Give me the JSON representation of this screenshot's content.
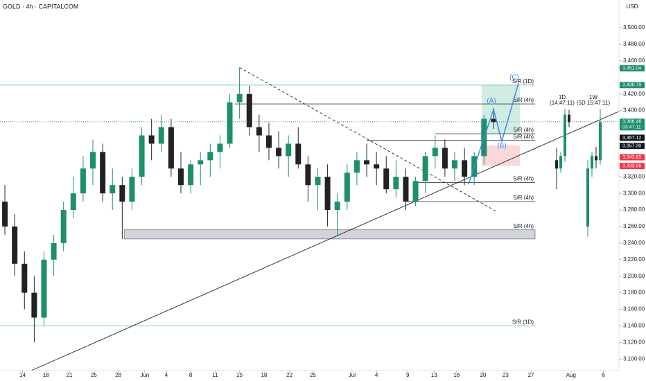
{
  "chart_data": {
    "type": "candlestick",
    "title": "GOLD · 4h · CAPITALCOM",
    "currency": "USD",
    "up_color": "#1e8f6e",
    "down_color": "#222222",
    "xlim": [
      0,
      63.3
    ],
    "ylim": [
      3086,
      3533.5
    ],
    "xticks": [
      {
        "value": 2.3,
        "label": "14"
      },
      {
        "value": 4.7,
        "label": "18"
      },
      {
        "value": 7.1,
        "label": "21"
      },
      {
        "value": 9.6,
        "label": "25"
      },
      {
        "value": 12.1,
        "label": "28"
      },
      {
        "value": 14.8,
        "label": "Jun"
      },
      {
        "value": 17.0,
        "label": "4"
      },
      {
        "value": 19.5,
        "label": "8"
      },
      {
        "value": 22.0,
        "label": "11"
      },
      {
        "value": 24.5,
        "label": "15"
      },
      {
        "value": 27.0,
        "label": "18"
      },
      {
        "value": 29.6,
        "label": "22"
      },
      {
        "value": 32.0,
        "label": "25"
      },
      {
        "value": 36.0,
        "label": "Jul"
      },
      {
        "value": 38.5,
        "label": "4"
      },
      {
        "value": 41.7,
        "label": "9"
      },
      {
        "value": 44.4,
        "label": "13"
      },
      {
        "value": 46.7,
        "label": "16"
      },
      {
        "value": 49.4,
        "label": "20"
      },
      {
        "value": 51.7,
        "label": "23"
      },
      {
        "value": 54.3,
        "label": "27"
      },
      {
        "value": 58.4,
        "label": "Aug"
      },
      {
        "value": 61.7,
        "label": "6"
      }
    ],
    "yticks": [
      {
        "value": 3100,
        "label": "3,100.00"
      },
      {
        "value": 3120,
        "label": "3,120.00"
      },
      {
        "value": 3140,
        "label": "3,140.00"
      },
      {
        "value": 3160,
        "label": "3,160.00"
      },
      {
        "value": 3180,
        "label": "3,180.00"
      },
      {
        "value": 3200,
        "label": "3,200.00"
      },
      {
        "value": 3220,
        "label": "3,220.00"
      },
      {
        "value": 3240,
        "label": "3,240.00"
      },
      {
        "value": 3260,
        "label": "3,260.00"
      },
      {
        "value": 3280,
        "label": "3,280.00"
      },
      {
        "value": 3300,
        "label": "3,300.00"
      },
      {
        "value": 3320,
        "label": "3,320.00"
      },
      {
        "value": 3400,
        "label": "3,400.00"
      },
      {
        "value": 3420,
        "label": "3,420.00"
      },
      {
        "value": 3460,
        "label": "3,460.00"
      },
      {
        "value": 3480,
        "label": "3,480.00"
      },
      {
        "value": 3500,
        "label": "3,500.00"
      }
    ],
    "candles": [
      {
        "open": 3290,
        "high": 3310,
        "low": 3250,
        "close": 3260
      },
      {
        "open": 3260,
        "high": 3275,
        "low": 3200,
        "close": 3215
      },
      {
        "open": 3215,
        "high": 3230,
        "low": 3160,
        "close": 3180
      },
      {
        "open": 3180,
        "high": 3200,
        "low": 3120,
        "close": 3150
      },
      {
        "open": 3150,
        "high": 3230,
        "low": 3140,
        "close": 3220
      },
      {
        "open": 3220,
        "high": 3250,
        "low": 3200,
        "close": 3240
      },
      {
        "open": 3240,
        "high": 3290,
        "low": 3230,
        "close": 3280
      },
      {
        "open": 3280,
        "high": 3320,
        "low": 3270,
        "close": 3300
      },
      {
        "open": 3300,
        "high": 3345,
        "low": 3290,
        "close": 3330
      },
      {
        "open": 3330,
        "high": 3365,
        "low": 3310,
        "close": 3350
      },
      {
        "open": 3350,
        "high": 3360,
        "low": 3290,
        "close": 3300
      },
      {
        "open": 3300,
        "high": 3330,
        "low": 3280,
        "close": 3310
      },
      {
        "open": 3310,
        "high": 3320,
        "low": 3245,
        "close": 3290
      },
      {
        "open": 3290,
        "high": 3330,
        "low": 3280,
        "close": 3320
      },
      {
        "open": 3320,
        "high": 3380,
        "low": 3310,
        "close": 3370
      },
      {
        "open": 3370,
        "high": 3390,
        "low": 3340,
        "close": 3360
      },
      {
        "open": 3360,
        "high": 3395,
        "low": 3350,
        "close": 3380
      },
      {
        "open": 3380,
        "high": 3390,
        "low": 3320,
        "close": 3330
      },
      {
        "open": 3330,
        "high": 3350,
        "low": 3300,
        "close": 3310
      },
      {
        "open": 3310,
        "high": 3340,
        "low": 3300,
        "close": 3335
      },
      {
        "open": 3335,
        "high": 3350,
        "low": 3310,
        "close": 3340
      },
      {
        "open": 3340,
        "high": 3360,
        "low": 3320,
        "close": 3350
      },
      {
        "open": 3350,
        "high": 3370,
        "low": 3330,
        "close": 3360
      },
      {
        "open": 3360,
        "high": 3420,
        "low": 3355,
        "close": 3410
      },
      {
        "open": 3410,
        "high": 3452,
        "low": 3390,
        "close": 3420
      },
      {
        "open": 3420,
        "high": 3430,
        "low": 3370,
        "close": 3380
      },
      {
        "open": 3380,
        "high": 3395,
        "low": 3350,
        "close": 3370
      },
      {
        "open": 3370,
        "high": 3385,
        "low": 3340,
        "close": 3355
      },
      {
        "open": 3355,
        "high": 3375,
        "low": 3330,
        "close": 3345
      },
      {
        "open": 3345,
        "high": 3370,
        "low": 3320,
        "close": 3360
      },
      {
        "open": 3360,
        "high": 3380,
        "low": 3330,
        "close": 3335
      },
      {
        "open": 3335,
        "high": 3345,
        "low": 3290,
        "close": 3310
      },
      {
        "open": 3310,
        "high": 3330,
        "low": 3280,
        "close": 3320
      },
      {
        "open": 3320,
        "high": 3335,
        "low": 3260,
        "close": 3280
      },
      {
        "open": 3280,
        "high": 3300,
        "low": 3248,
        "close": 3290
      },
      {
        "open": 3290,
        "high": 3335,
        "low": 3280,
        "close": 3325
      },
      {
        "open": 3325,
        "high": 3350,
        "low": 3310,
        "close": 3340
      },
      {
        "open": 3340,
        "high": 3360,
        "low": 3320,
        "close": 3335
      },
      {
        "open": 3335,
        "high": 3350,
        "low": 3310,
        "close": 3330
      },
      {
        "open": 3330,
        "high": 3345,
        "low": 3300,
        "close": 3305
      },
      {
        "open": 3305,
        "high": 3340,
        "low": 3295,
        "close": 3320
      },
      {
        "open": 3320,
        "high": 3330,
        "low": 3280,
        "close": 3290
      },
      {
        "open": 3290,
        "high": 3320,
        "low": 3285,
        "close": 3315
      },
      {
        "open": 3315,
        "high": 3350,
        "low": 3300,
        "close": 3345
      },
      {
        "open": 3345,
        "high": 3370,
        "low": 3330,
        "close": 3355
      },
      {
        "open": 3355,
        "high": 3365,
        "low": 3320,
        "close": 3330
      },
      {
        "open": 3330,
        "high": 3350,
        "low": 3315,
        "close": 3340
      },
      {
        "open": 3340,
        "high": 3355,
        "low": 3310,
        "close": 3320
      },
      {
        "open": 3320,
        "high": 3350,
        "low": 3310,
        "close": 3345
      },
      {
        "open": 3345,
        "high": 3395,
        "low": 3335,
        "close": 3390
      },
      {
        "open": 3390,
        "high": 3403,
        "low": 3378,
        "close": 3386
      }
    ],
    "levels": [
      {
        "value": 3430.79,
        "from": 0,
        "label": "S/R (1D)",
        "color": "#5cc4a0"
      },
      {
        "value": 3408,
        "from": 24.0,
        "label": "S/R (4h)",
        "color": "#444444"
      },
      {
        "value": 3372,
        "from": 44.5,
        "label": "S/R (4h)",
        "color": "#444444"
      },
      {
        "value": 3364,
        "from": 37.5,
        "label": "S/R (4h)",
        "color": "#444444"
      },
      {
        "value": 3313,
        "from": 42.8,
        "label": "S/R (4h)",
        "color": "#444444"
      },
      {
        "value": 3290,
        "from": 41.7,
        "label": "S/R (4h)",
        "color": "#444444"
      },
      {
        "value": 3140,
        "from": 0,
        "label": "S/R (1D)",
        "color": "#5cc4a0"
      }
    ],
    "zone": {
      "low": 3245,
      "high": 3256,
      "from": 12.7,
      "label": "S/R (4h)"
    },
    "trendlines": [
      {
        "points": [
          [
            3.2,
            3086
          ],
          [
            63.3,
            3399
          ]
        ],
        "style": "solid"
      },
      {
        "points": [
          [
            24.5,
            3452
          ],
          [
            50.8,
            3278
          ]
        ],
        "style": "dashed"
      }
    ],
    "waves": [
      "(A)",
      "(B)",
      "(C)"
    ],
    "price_labels": [
      {
        "value": 3451.04,
        "label": "3,451.04",
        "color": "#1e8f6e"
      },
      {
        "value": 3430.79,
        "label": "3,430.79",
        "color": "#1e8f6e"
      },
      {
        "value": 3386.46,
        "label": "3,386.46",
        "sub": "03:47:11",
        "color": "#1e8f6e"
      },
      {
        "value": 3367.12,
        "label": "3,367.12",
        "color": "#131722"
      },
      {
        "value": 3357.3,
        "label": "3,357.30",
        "color": "#131722"
      },
      {
        "value": 3343.65,
        "label": "3,343.65",
        "color": "#f23645"
      },
      {
        "value": 3333.06,
        "label": "3,333.06",
        "color": "#f23645"
      }
    ],
    "insets": [
      {
        "title": "1D",
        "subtitle": "(14:47:11)",
        "candles": [
          {
            "open": 3340,
            "high": 3355,
            "low": 3305,
            "close": 3330
          },
          {
            "open": 3330,
            "high": 3350,
            "low": 3325,
            "close": 3345
          },
          {
            "open": 3345,
            "high": 3402,
            "low": 3338,
            "close": 3395
          },
          {
            "open": 3395,
            "high": 3401,
            "low": 3380,
            "close": 3386
          }
        ]
      },
      {
        "title": "1W",
        "subtitle": "(5D 15:47:11)",
        "candles": [
          {
            "open": 3260,
            "high": 3340,
            "low": 3248,
            "close": 3330
          },
          {
            "open": 3330,
            "high": 3350,
            "low": 3320,
            "close": 3345
          },
          {
            "open": 3345,
            "high": 3356,
            "low": 3330,
            "close": 3340
          },
          {
            "open": 3340,
            "high": 3402,
            "low": 3335,
            "close": 3386
          }
        ]
      }
    ]
  }
}
